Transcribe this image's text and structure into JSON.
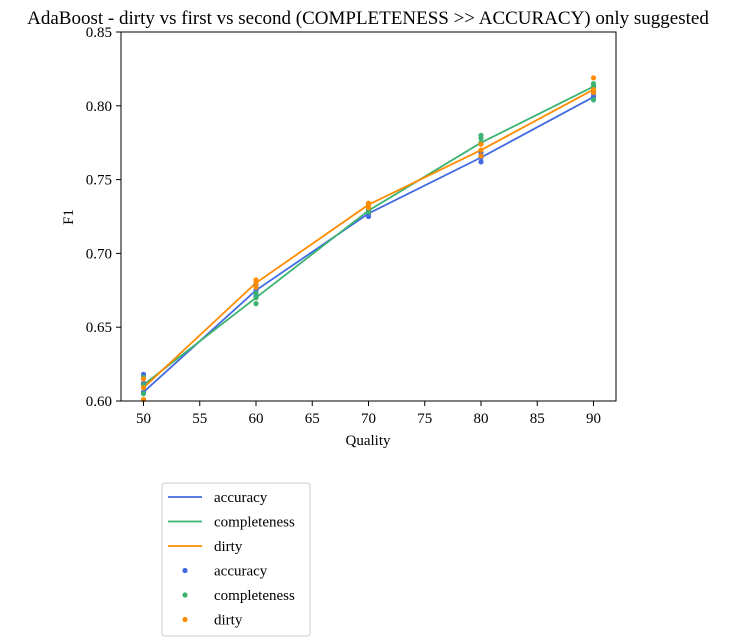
{
  "chart_data": {
    "type": "line",
    "title": "AdaBoost - dirty vs first vs second (COMPLETENESS >> ACCURACY) only suggested",
    "xlabel": "Quality",
    "ylabel": "F1",
    "xlim": [
      48,
      92
    ],
    "ylim": [
      0.6,
      0.85
    ],
    "xticks": [
      50,
      55,
      60,
      65,
      70,
      75,
      80,
      85,
      90
    ],
    "yticks": [
      0.6,
      0.65,
      0.7,
      0.75,
      0.8,
      0.85
    ],
    "xtick_labels": [
      "50",
      "55",
      "60",
      "65",
      "70",
      "75",
      "80",
      "85",
      "90"
    ],
    "ytick_labels": [
      "0.60",
      "0.65",
      "0.70",
      "0.75",
      "0.80",
      "0.85"
    ],
    "grid": false,
    "legend_placement": "below-left, outside plot",
    "series": [
      {
        "name": "accuracy",
        "kind": "line",
        "color": "#4169e1",
        "x": [
          50,
          60,
          70,
          80,
          90
        ],
        "y": [
          0.606,
          0.675,
          0.727,
          0.765,
          0.806
        ]
      },
      {
        "name": "completeness",
        "kind": "line",
        "color": "#3cb371",
        "x": [
          50,
          60,
          70,
          80,
          90
        ],
        "y": [
          0.611,
          0.67,
          0.729,
          0.775,
          0.813
        ]
      },
      {
        "name": "dirty",
        "kind": "line",
        "color": "#ff8c00",
        "x": [
          50,
          60,
          70,
          80,
          90
        ],
        "y": [
          0.609,
          0.68,
          0.733,
          0.77,
          0.811
        ]
      },
      {
        "name": "accuracy",
        "kind": "scatter",
        "color": "#4169e1",
        "points": [
          [
            50,
            0.606
          ],
          [
            50,
            0.612
          ],
          [
            50,
            0.618
          ],
          [
            60,
            0.671
          ],
          [
            60,
            0.675
          ],
          [
            60,
            0.679
          ],
          [
            70,
            0.725
          ],
          [
            70,
            0.727
          ],
          [
            70,
            0.729
          ],
          [
            80,
            0.762
          ],
          [
            80,
            0.765
          ],
          [
            80,
            0.768
          ],
          [
            90,
            0.806
          ],
          [
            90,
            0.808
          ],
          [
            90,
            0.81
          ]
        ]
      },
      {
        "name": "completeness",
        "kind": "scatter",
        "color": "#3cb371",
        "points": [
          [
            50,
            0.605
          ],
          [
            50,
            0.611
          ],
          [
            50,
            0.616
          ],
          [
            60,
            0.666
          ],
          [
            60,
            0.67
          ],
          [
            60,
            0.673
          ],
          [
            70,
            0.728
          ],
          [
            70,
            0.73
          ],
          [
            70,
            0.731
          ],
          [
            80,
            0.775
          ],
          [
            80,
            0.778
          ],
          [
            80,
            0.78
          ],
          [
            90,
            0.804
          ],
          [
            90,
            0.813
          ],
          [
            90,
            0.815
          ]
        ]
      },
      {
        "name": "dirty",
        "kind": "scatter",
        "color": "#ff8c00",
        "points": [
          [
            50,
            0.601
          ],
          [
            50,
            0.609
          ],
          [
            50,
            0.615
          ],
          [
            60,
            0.677
          ],
          [
            60,
            0.68
          ],
          [
            60,
            0.682
          ],
          [
            70,
            0.731
          ],
          [
            70,
            0.733
          ],
          [
            70,
            0.734
          ],
          [
            80,
            0.766
          ],
          [
            80,
            0.77
          ],
          [
            80,
            0.774
          ],
          [
            90,
            0.809
          ],
          [
            90,
            0.811
          ],
          [
            90,
            0.819
          ]
        ]
      }
    ],
    "legend": [
      {
        "label": "accuracy",
        "marker": "line",
        "color": "#4169e1"
      },
      {
        "label": "completeness",
        "marker": "line",
        "color": "#3cb371"
      },
      {
        "label": "dirty",
        "marker": "line",
        "color": "#ff8c00"
      },
      {
        "label": "accuracy",
        "marker": "dot",
        "color": "#4169e1"
      },
      {
        "label": "completeness",
        "marker": "dot",
        "color": "#3cb371"
      },
      {
        "label": "dirty",
        "marker": "dot",
        "color": "#ff8c00"
      }
    ]
  }
}
